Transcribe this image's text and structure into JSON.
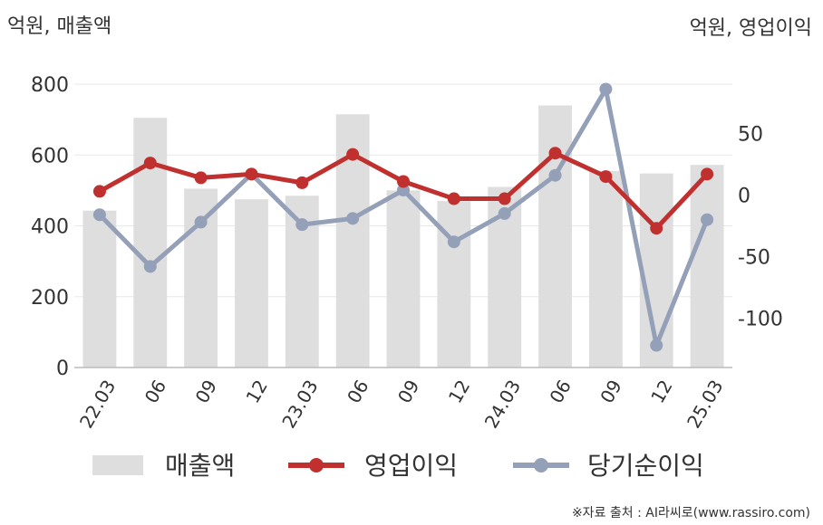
{
  "chart_data": {
    "type": "bar",
    "left_unit_label": "억원, 매출액",
    "right_unit_label": "억원, 영업이익",
    "categories": [
      "22.03",
      "06",
      "09",
      "12",
      "23.03",
      "06",
      "09",
      "12",
      "24.03",
      "06",
      "09",
      "12",
      "25.03"
    ],
    "left_axis": {
      "ylim": [
        0,
        800
      ],
      "ticks": [
        0,
        200,
        400,
        600,
        800
      ]
    },
    "right_axis": {
      "ylim": [
        -140,
        90
      ],
      "ticks": [
        -100,
        -50,
        0,
        50
      ]
    },
    "series": [
      {
        "name": "매출액",
        "type": "bar",
        "axis": "left",
        "color": "#dedede",
        "values": [
          443,
          705,
          505,
          475,
          485,
          715,
          500,
          470,
          510,
          740,
          555,
          548,
          572
        ]
      },
      {
        "name": "영업이익",
        "type": "line",
        "axis": "right",
        "color": "#c0302f",
        "values": [
          3,
          26,
          14,
          17,
          10,
          33,
          11,
          -3,
          -3,
          34,
          15,
          -27,
          17
        ]
      },
      {
        "name": "당기순이익",
        "type": "line",
        "axis": "right",
        "color": "#949fb8",
        "values": [
          -16,
          -58,
          -22,
          17,
          -24,
          -19,
          4,
          -38,
          -15,
          16,
          86,
          -122,
          -20
        ]
      }
    ],
    "grid": true,
    "legend_position": "bottom",
    "source": "※자료 출처 : AI라씨로(www.rassiro.com)"
  }
}
